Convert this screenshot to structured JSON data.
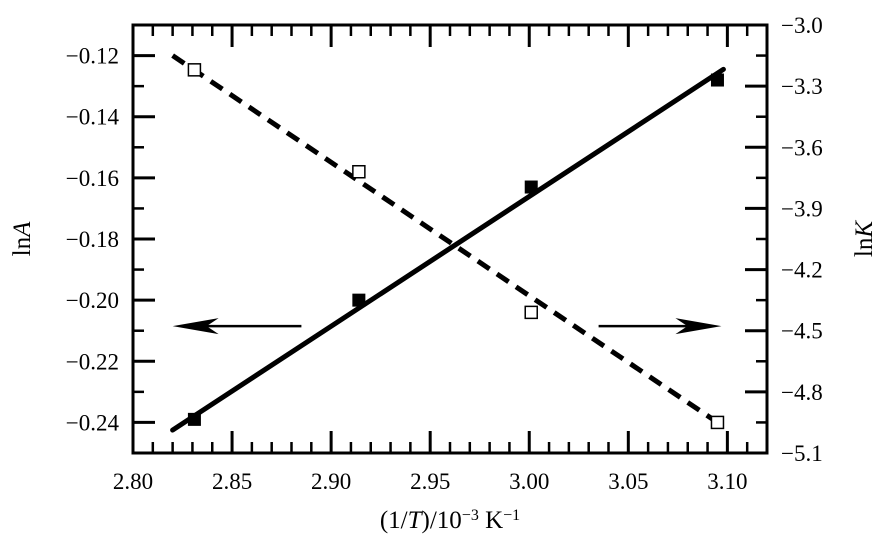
{
  "chart_data": {
    "type": "scatter",
    "xlabel": "(1/T)/10⁻³ K⁻¹",
    "xlabel_parts": [
      "(1/",
      "T",
      ")/10",
      "−3",
      " K",
      "−1"
    ],
    "ylabel_left": "lnA",
    "ylabel_left_parts": [
      "ln",
      "A"
    ],
    "ylabel_right": "lnK",
    "ylabel_right_parts": [
      "ln",
      "K"
    ],
    "xlim": [
      2.8,
      3.12
    ],
    "ylim_left": [
      -0.25,
      -0.11
    ],
    "ylim_right": [
      -5.1,
      -3.0
    ],
    "x_ticks": [
      2.8,
      2.85,
      2.9,
      2.95,
      3.0,
      3.05,
      3.1
    ],
    "x_tick_labels": [
      "2.80",
      "2.85",
      "2.90",
      "2.95",
      "3.00",
      "3.05",
      "3.10"
    ],
    "y_left_ticks": [
      -0.12,
      -0.14,
      -0.16,
      -0.18,
      -0.2,
      -0.22,
      -0.24
    ],
    "y_left_tick_labels": [
      "−0.12",
      "−0.14",
      "−0.16",
      "−0.18",
      "−0.20",
      "−0.22",
      "−0.24"
    ],
    "y_right_ticks": [
      -3.0,
      -3.3,
      -3.6,
      -3.9,
      -4.2,
      -4.5,
      -4.8,
      -5.1
    ],
    "y_right_tick_labels": [
      "−3.0",
      "−3.3",
      "−3.6",
      "−3.9",
      "−4.2",
      "−4.5",
      "−4.8",
      "−5.1"
    ],
    "series": [
      {
        "axis": "left",
        "marker": "filled-square",
        "line": "solid",
        "x": [
          2.831,
          2.914,
          3.001,
          3.095
        ],
        "y": [
          -0.239,
          -0.2,
          -0.163,
          -0.128
        ],
        "fit": {
          "x": [
            2.82,
            3.098
          ],
          "y": [
            -0.2425,
            -0.1245
          ]
        }
      },
      {
        "axis": "right",
        "marker": "open-square",
        "line": "dashed",
        "x": [
          2.831,
          2.914,
          3.001,
          3.095
        ],
        "y": [
          -3.22,
          -3.72,
          -4.41,
          -4.95
        ],
        "fit": {
          "x": [
            2.82,
            3.095
          ],
          "y": [
            -3.15,
            -4.95
          ]
        }
      }
    ],
    "annotations": [
      {
        "type": "arrow",
        "points_to": "left",
        "near_x": 2.85,
        "near_y_left": -0.2085
      },
      {
        "type": "arrow",
        "points_to": "right",
        "near_x": 3.055,
        "near_y_left": -0.2085
      }
    ]
  }
}
